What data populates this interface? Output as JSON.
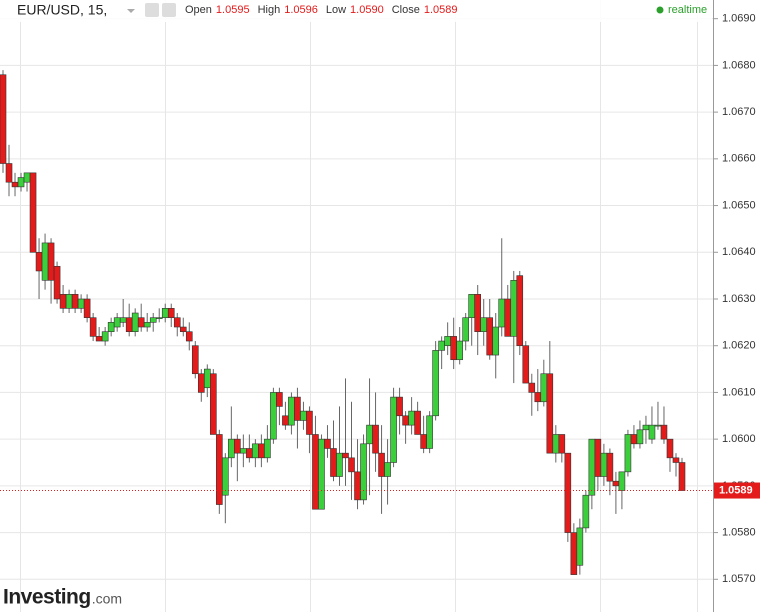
{
  "chart_data": {
    "type": "candlestick",
    "title": "EUR/USD, 15,",
    "info_labels": [
      "Open",
      "High",
      "Low",
      "Close"
    ],
    "info_values": [
      1.0595,
      1.0596,
      {
        "value": 1.059,
        "label": "1.0590"
      },
      1.0589
    ],
    "status": "realtime",
    "brand": "Investing",
    "brand_suffix": ".com",
    "last_price": 1.0589,
    "up_color": "#3ccf3c",
    "down_color": "#e31b1b",
    "ylim": [
      1.0563,
      1.0694
    ],
    "yticks": [
      {
        "value": 1.057,
        "label": "1.0570"
      },
      {
        "value": 1.058,
        "label": "1.0580"
      },
      {
        "value": 1.059,
        "label": "1.0590"
      },
      {
        "value": 1.06,
        "label": "1.0600"
      },
      {
        "value": 1.061,
        "label": "1.0610"
      },
      {
        "value": 1.062,
        "label": "1.0620"
      },
      {
        "value": 1.063,
        "label": "1.0630"
      },
      {
        "value": 1.064,
        "label": "1.0640"
      },
      {
        "value": 1.065,
        "label": "1.0650"
      },
      {
        "value": 1.066,
        "label": "1.0660"
      },
      {
        "value": 1.067,
        "label": "1.0670"
      },
      {
        "value": 1.068,
        "label": "1.0680"
      },
      {
        "value": 1.069,
        "label": "1.0690"
      }
    ],
    "grid": true,
    "open": [
      1.0678,
      1.0659,
      1.0655,
      1.0654,
      1.0655,
      1.0657,
      1.064,
      1.0634,
      1.0642,
      1.0637,
      1.0631,
      1.0628,
      1.0631,
      1.0628,
      1.063,
      1.0626,
      1.0622,
      1.0621,
      1.0623,
      1.0624,
      1.0625,
      1.0626,
      1.0623,
      1.0626,
      1.0624,
      1.0625,
      1.0626,
      1.0626,
      1.0628,
      1.0626,
      1.0624,
      1.0623,
      1.062,
      1.0614,
      1.0611,
      1.0614,
      1.0601,
      1.0588,
      1.0596,
      1.06,
      1.0597,
      1.0598,
      1.0596,
      1.0599,
      1.0596,
      1.06,
      1.061,
      1.0605,
      1.0603,
      1.0609,
      1.0604,
      1.0606,
      1.0601,
      1.0585,
      1.06,
      1.0598,
      1.0592,
      1.0597,
      1.0596,
      1.0593,
      1.0587,
      1.0599,
      1.0603,
      1.0597,
      1.0592,
      1.0595,
      1.0609,
      1.0605,
      1.0603,
      1.0606,
      1.0601,
      1.0598,
      1.0605,
      1.0619,
      1.062,
      1.0622,
      1.0617,
      1.0621,
      1.0626,
      1.0631,
      1.0623,
      1.0626,
      1.0618,
      1.0624,
      1.063,
      1.0622,
      1.0635,
      1.062,
      1.0612,
      1.061,
      1.0608,
      1.0614,
      1.0597,
      1.0601,
      1.0597,
      1.058,
      1.0573,
      1.0581,
      1.0588,
      1.06,
      1.0592,
      1.0597,
      1.0591,
      1.0589,
      1.0593,
      1.0601,
      1.0599,
      1.0602,
      1.06,
      1.0603,
      1.0603,
      1.06,
      1.0596,
      1.0595
    ],
    "high": [
      1.0679,
      1.0663,
      1.0657,
      1.0657,
      1.0657,
      1.0657,
      1.0643,
      1.0644,
      1.0643,
      1.0638,
      1.0633,
      1.0632,
      1.0632,
      1.0631,
      1.0631,
      1.0627,
      1.0624,
      1.0624,
      1.0626,
      1.0627,
      1.063,
      1.0629,
      1.0628,
      1.0629,
      1.0627,
      1.0627,
      1.0628,
      1.0629,
      1.0629,
      1.0627,
      1.0626,
      1.0625,
      1.0621,
      1.0615,
      1.0616,
      1.0615,
      1.0602,
      1.0597,
      1.0607,
      1.0601,
      1.0601,
      1.0601,
      1.06,
      1.0601,
      1.0603,
      1.0611,
      1.0611,
      1.0608,
      1.061,
      1.0611,
      1.0608,
      1.0607,
      1.0605,
      1.0601,
      1.0603,
      1.0604,
      1.0607,
      1.0613,
      1.0608,
      1.06,
      1.0601,
      1.0613,
      1.061,
      1.0603,
      1.06,
      1.0611,
      1.0611,
      1.0606,
      1.0609,
      1.0608,
      1.0605,
      1.0606,
      1.0621,
      1.0622,
      1.0625,
      1.0626,
      1.0624,
      1.0627,
      1.0631,
      1.0633,
      1.063,
      1.063,
      1.0627,
      1.0643,
      1.0633,
      1.0636,
      1.0636,
      1.0621,
      1.0614,
      1.0615,
      1.0617,
      1.0621,
      1.0603,
      1.0601,
      1.0597,
      1.0582,
      1.0583,
      1.0589,
      1.06,
      1.06,
      1.0599,
      1.0598,
      1.0593,
      1.0593,
      1.0602,
      1.0603,
      1.0604,
      1.0605,
      1.0607,
      1.0608,
      1.0607,
      1.06,
      1.0597,
      1.0596
    ],
    "low": [
      1.0657,
      1.0652,
      1.0652,
      1.0653,
      1.0653,
      1.064,
      1.063,
      1.0632,
      1.0629,
      1.0629,
      1.0627,
      1.0627,
      1.0627,
      1.0627,
      1.0625,
      1.0621,
      1.0621,
      1.062,
      1.0622,
      1.0623,
      1.0624,
      1.0622,
      1.0622,
      1.0623,
      1.0623,
      1.0623,
      1.0625,
      1.0625,
      1.0624,
      1.0622,
      1.0622,
      1.0619,
      1.0613,
      1.0608,
      1.0609,
      1.0601,
      1.0584,
      1.0582,
      1.0594,
      1.0591,
      1.0594,
      1.0595,
      1.0594,
      1.0594,
      1.0595,
      1.0599,
      1.0603,
      1.0602,
      1.0601,
      1.0598,
      1.0602,
      1.0597,
      1.0585,
      1.0585,
      1.0596,
      1.0591,
      1.059,
      1.059,
      1.0587,
      1.0585,
      1.0586,
      1.0588,
      1.0593,
      1.0584,
      1.0586,
      1.0594,
      1.0601,
      1.0599,
      1.0601,
      1.0601,
      1.0597,
      1.0597,
      1.0604,
      1.0615,
      1.0618,
      1.0615,
      1.0616,
      1.0619,
      1.062,
      1.0618,
      1.062,
      1.0617,
      1.0613,
      1.0622,
      1.0622,
      1.0612,
      1.0618,
      1.0612,
      1.0605,
      1.0606,
      1.0607,
      1.0597,
      1.0595,
      1.0595,
      1.0578,
      1.0571,
      1.0571,
      1.058,
      1.0585,
      1.0589,
      1.059,
      1.0588,
      1.0584,
      1.0585,
      1.0592,
      1.0598,
      1.0598,
      1.0599,
      1.0599,
      1.0602,
      1.0599,
      1.0593,
      1.0592,
      1.0589
    ],
    "close": [
      1.0659,
      1.0655,
      1.0654,
      1.0656,
      1.0657,
      1.064,
      1.0636,
      1.0642,
      1.0634,
      1.063,
      1.0628,
      1.0631,
      1.0628,
      1.063,
      1.0626,
      1.0622,
      1.0621,
      1.0623,
      1.0625,
      1.0626,
      1.0626,
      1.0623,
      1.0627,
      1.0624,
      1.0625,
      1.0626,
      1.0626,
      1.0628,
      1.0626,
      1.0624,
      1.0623,
      1.0621,
      1.0614,
      1.061,
      1.0615,
      1.0601,
      1.0586,
      1.0596,
      1.06,
      1.0597,
      1.0598,
      1.0596,
      1.0599,
      1.0596,
      1.06,
      1.061,
      1.0607,
      1.0603,
      1.0609,
      1.0604,
      1.0606,
      1.0601,
      1.0585,
      1.06,
      1.0598,
      1.0592,
      1.0597,
      1.0596,
      1.0593,
      1.0587,
      1.0599,
      1.0603,
      1.0597,
      1.0592,
      1.0595,
      1.0609,
      1.0605,
      1.0603,
      1.0606,
      1.0601,
      1.0598,
      1.0605,
      1.0619,
      1.0621,
      1.0622,
      1.0617,
      1.0621,
      1.0626,
      1.0631,
      1.0623,
      1.0626,
      1.0618,
      1.0624,
      1.063,
      1.0622,
      1.0634,
      1.062,
      1.0612,
      1.061,
      1.0608,
      1.0614,
      1.0597,
      1.0601,
      1.0597,
      1.058,
      1.0571,
      1.0581,
      1.0588,
      1.06,
      1.0592,
      1.0597,
      1.0591,
      1.059,
      1.0593,
      1.0601,
      1.0599,
      1.0602,
      1.0603,
      1.0603,
      1.0603,
      1.06,
      1.0596,
      1.0595,
      1.0589
    ]
  }
}
